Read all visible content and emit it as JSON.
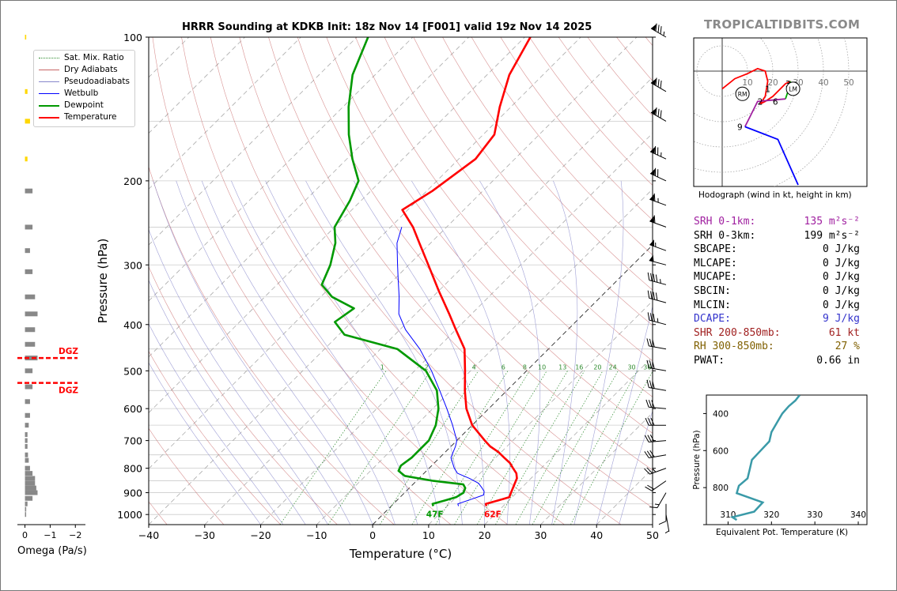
{
  "page": {
    "title": "HRRR Sounding at KDKB Init: 18z Nov 14 [F001] valid 19z Nov 14 2025",
    "logo": "TROPICALTIDBITS.COM"
  },
  "legend": [
    {
      "label": "Sat. Mix. Ratio",
      "color": "#2e8b2e",
      "style": "dotted"
    },
    {
      "label": "Dry Adiabats",
      "color": "#c86464",
      "style": "solid"
    },
    {
      "label": "Pseudoadiabats",
      "color": "#8888cc",
      "style": "solid"
    },
    {
      "label": "Wetbulb",
      "color": "#0000ff",
      "style": "solid"
    },
    {
      "label": "Dewpoint",
      "color": "#009900",
      "style": "solid"
    },
    {
      "label": "Temperature",
      "color": "#ff0000",
      "style": "solid"
    }
  ],
  "skewt": {
    "xlabel": "Temperature (°C)",
    "ylabel": "Pressure (hPa)",
    "xticks": [
      -40,
      -30,
      -20,
      -10,
      0,
      10,
      20,
      30,
      40,
      50
    ],
    "yticks": [
      100,
      200,
      300,
      400,
      500,
      600,
      700,
      800,
      900,
      1000
    ],
    "mixing_ratio_labels": [
      "1",
      "2",
      "4",
      "6",
      "8",
      "10",
      "13",
      "16",
      "20",
      "24",
      "30",
      "36"
    ],
    "surface_dewpoint_label": "47F",
    "surface_temperature_label": "62F"
  },
  "omega": {
    "xlabel": "Omega (Pa/s)",
    "xticks": [
      "0",
      "−1",
      "−2"
    ],
    "dgz_label": "DGZ"
  },
  "hodograph": {
    "caption": "Hodograph (wind in kt, height in km)",
    "ring_labels": [
      "10",
      "20",
      "30",
      "40",
      "50"
    ],
    "height_labels": [
      "1",
      "2",
      "3",
      "6",
      "9"
    ],
    "lm_label": "LM",
    "rm_label": "RM"
  },
  "params": [
    {
      "label": "SRH 0-1km:",
      "value": "135 m²s⁻²",
      "color": "#a020a0"
    },
    {
      "label": "SRH 0-3km:",
      "value": "199 m²s⁻²",
      "color": "#000000"
    },
    {
      "label": "SBCAPE:",
      "value": "0 J/kg",
      "color": "#000000"
    },
    {
      "label": "MLCAPE:",
      "value": "0 J/kg",
      "color": "#000000"
    },
    {
      "label": "MUCAPE:",
      "value": "0 J/kg",
      "color": "#000000"
    },
    {
      "label": "SBCIN:",
      "value": "0 J/kg",
      "color": "#000000"
    },
    {
      "label": "MLCIN:",
      "value": "0 J/kg",
      "color": "#000000"
    },
    {
      "label": "DCAPE:",
      "value": "9 J/kg",
      "color": "#3333cc"
    },
    {
      "label": "SHR 200-850mb:",
      "value": "61 kt",
      "color": "#a02020"
    },
    {
      "label": "RH 300-850mb:",
      "value": "27 %",
      "color": "#806000"
    },
    {
      "label": "PWAT:",
      "value": "0.66 in",
      "color": "#000000"
    }
  ],
  "theta_e": {
    "xlabel": "Equivalent Pot. Temperature (K)",
    "ylabel": "Pressure (hPa)",
    "xticks": [
      "310",
      "320",
      "330",
      "340"
    ],
    "yticks": [
      "400",
      "600",
      "800"
    ]
  },
  "chart_data": [
    {
      "type": "line",
      "title": "HRRR Sounding at KDKB Init: 18z Nov 14 [F001] valid 19z Nov 14 2025",
      "xlabel": "Temperature (°C)",
      "ylabel": "Pressure (hPa)",
      "xlim": [
        -40,
        50
      ],
      "ylim": [
        1050,
        100
      ],
      "y_scale": "log",
      "skew": "skew-T",
      "series": [
        {
          "name": "Temperature",
          "color": "#ff0000",
          "points": [
            [
              17.0,
              960
            ],
            [
              16.5,
              950
            ],
            [
              18.0,
              935
            ],
            [
              19.5,
              920
            ],
            [
              19.0,
              900
            ],
            [
              18.5,
              880
            ],
            [
              18.0,
              860
            ],
            [
              17.5,
              840
            ],
            [
              16.5,
              820
            ],
            [
              15.0,
              800
            ],
            [
              13.5,
              780
            ],
            [
              11.5,
              760
            ],
            [
              9.5,
              740
            ],
            [
              7.0,
              720
            ],
            [
              5.0,
              700
            ],
            [
              0.0,
              650
            ],
            [
              -4.0,
              600
            ],
            [
              -7.5,
              550
            ],
            [
              -11.0,
              500
            ],
            [
              -15.0,
              450
            ],
            [
              -20.0,
              410
            ],
            [
              -24.0,
              380
            ],
            [
              -30.0,
              340
            ],
            [
              -36.5,
              300
            ],
            [
              -42.0,
              270
            ],
            [
              -46.0,
              250
            ],
            [
              -51.0,
              230
            ],
            [
              -49.0,
              210
            ],
            [
              -47.0,
              180
            ],
            [
              -48.0,
              160
            ],
            [
              -52.0,
              140
            ],
            [
              -56.0,
              120
            ],
            [
              -59.0,
              100
            ]
          ]
        },
        {
          "name": "Dewpoint",
          "color": "#009900",
          "points": [
            [
              7.5,
              960
            ],
            [
              7.0,
              950
            ],
            [
              8.5,
              935
            ],
            [
              10.0,
              920
            ],
            [
              10.5,
              900
            ],
            [
              10.0,
              880
            ],
            [
              9.0,
              865
            ],
            [
              3.0,
              850
            ],
            [
              -3.0,
              830
            ],
            [
              -5.0,
              810
            ],
            [
              -5.5,
              790
            ],
            [
              -5.0,
              760
            ],
            [
              -5.0,
              730
            ],
            [
              -5.0,
              700
            ],
            [
              -6.5,
              650
            ],
            [
              -9.0,
              600
            ],
            [
              -12.5,
              550
            ],
            [
              -18.0,
              500
            ],
            [
              -27.0,
              450
            ],
            [
              -39.0,
              420
            ],
            [
              -43.0,
              395
            ],
            [
              -42.0,
              370
            ],
            [
              -48.0,
              350
            ],
            [
              -52.0,
              330
            ],
            [
              -54.0,
              300
            ],
            [
              -57.0,
              270
            ],
            [
              -60.0,
              250
            ],
            [
              -62.0,
              220
            ],
            [
              -64.0,
              200
            ],
            [
              -69.0,
              180
            ],
            [
              -74.0,
              160
            ],
            [
              -79.0,
              140
            ],
            [
              -84.0,
              120
            ],
            [
              -88.0,
              100
            ]
          ]
        },
        {
          "name": "Wetbulb",
          "color": "#0000ff",
          "points": [
            [
              12.0,
              960
            ],
            [
              11.5,
              950
            ],
            [
              13.0,
              930
            ],
            [
              14.5,
              910
            ],
            [
              14.0,
              895
            ],
            [
              13.0,
              880
            ],
            [
              11.5,
              860
            ],
            [
              9.0,
              840
            ],
            [
              6.0,
              820
            ],
            [
              4.5,
              800
            ],
            [
              2.0,
              760
            ],
            [
              0.8,
              720
            ],
            [
              0.0,
              700
            ],
            [
              -3.5,
              650
            ],
            [
              -7.5,
              600
            ],
            [
              -12.0,
              550
            ],
            [
              -17.0,
              500
            ],
            [
              -23.0,
              450
            ],
            [
              -29.0,
              410
            ],
            [
              -33.0,
              380
            ],
            [
              -36.0,
              350
            ],
            [
              -39.5,
              320
            ],
            [
              -42.0,
              300
            ],
            [
              -46.0,
              270
            ],
            [
              -48.0,
              250
            ]
          ]
        }
      ],
      "surface_labels": {
        "dewpoint": "47F",
        "temperature": "62F"
      }
    },
    {
      "type": "line",
      "title": "",
      "xlabel": "Equivalent Pot. Temperature (K)",
      "ylabel": "Pressure (hPa)",
      "xlim": [
        305,
        342
      ],
      "ylim": [
        1000,
        300
      ],
      "series": [
        {
          "name": "",
          "color": "#3a9aa8",
          "points": [
            [
              312,
              975
            ],
            [
              311,
              960
            ],
            [
              316,
              930
            ],
            [
              318,
              880
            ],
            [
              312,
              830
            ],
            [
              312.5,
              790
            ],
            [
              314.5,
              750
            ],
            [
              315,
              700
            ],
            [
              315.5,
              650
            ],
            [
              317.5,
              600
            ],
            [
              319.5,
              550
            ],
            [
              320,
              500
            ],
            [
              321.5,
              440
            ],
            [
              322.5,
              400
            ],
            [
              324,
              360
            ],
            [
              325.5,
              330
            ],
            [
              326.5,
              300
            ]
          ]
        }
      ]
    },
    {
      "type": "line",
      "title": "Hodograph (wind in kt, height in km)",
      "xlabel": "",
      "ylabel": "",
      "ring_labels_kt": [
        10,
        20,
        30,
        40,
        50
      ],
      "series": [
        {
          "name": "0-1 km",
          "color": "#ff0000",
          "points": [
            [
              0,
              -7
            ],
            [
              5,
              -3
            ],
            [
              10,
              -1
            ],
            [
              14,
              1
            ],
            [
              17,
              0
            ],
            [
              18,
              -4
            ],
            [
              17,
              -10
            ],
            [
              15,
              -13
            ]
          ]
        },
        {
          "name": "1-3 km",
          "color": "#ff0000",
          "points": [
            [
              15,
              -13
            ],
            [
              17,
              -12
            ],
            [
              20,
              -10
            ],
            [
              22,
              -8
            ],
            [
              25,
              -5
            ],
            [
              27,
              -4
            ]
          ]
        },
        {
          "name": "3-6 km",
          "color": "#00aa00",
          "points": [
            [
              27,
              -4
            ],
            [
              26,
              -8
            ],
            [
              25,
              -11
            ]
          ]
        },
        {
          "name": "6-9 km",
          "color": "#a020a0",
          "points": [
            [
              25,
              -11
            ],
            [
              14,
              -12
            ],
            [
              11,
              -18
            ],
            [
              9,
              -22
            ]
          ]
        },
        {
          "name": "9+ km",
          "color": "#0000ff",
          "points": [
            [
              9,
              -22
            ],
            [
              22,
              -27
            ],
            [
              30,
              -45
            ]
          ]
        }
      ],
      "height_markers": [
        {
          "label": "1",
          "u": 18,
          "v": -7
        },
        {
          "label": "2",
          "u": 15,
          "v": -12
        },
        {
          "label": "3",
          "u": 26,
          "v": -5
        },
        {
          "label": "6",
          "u": 21,
          "v": -12
        },
        {
          "label": "9",
          "u": 7,
          "v": -22
        }
      ],
      "LM": [
        28,
        -7
      ],
      "RM": [
        8,
        -9
      ]
    },
    {
      "type": "bar",
      "title": "",
      "xlabel": "Omega (Pa/s)",
      "ylabel": "",
      "xlim": [
        0.3,
        -2.4
      ],
      "orientation": "horizontal",
      "pressure": [
        100,
        130,
        150,
        180,
        210,
        250,
        280,
        310,
        350,
        380,
        410,
        440,
        470,
        500,
        540,
        580,
        620,
        650,
        680,
        700,
        720,
        750,
        770,
        800,
        820,
        840,
        860,
        880,
        900,
        925,
        950,
        975,
        1000
      ],
      "omega": [
        -0.05,
        -0.1,
        -0.2,
        -0.1,
        -0.3,
        -0.3,
        -0.2,
        -0.3,
        -0.4,
        -0.5,
        -0.4,
        -0.4,
        -0.5,
        -0.3,
        -0.3,
        -0.2,
        -0.2,
        -0.15,
        -0.1,
        -0.1,
        -0.1,
        -0.12,
        -0.15,
        -0.2,
        -0.3,
        -0.4,
        -0.4,
        -0.45,
        -0.5,
        -0.3,
        -0.1,
        -0.05,
        -0.02
      ],
      "dgz_pressures": [
        470,
        530
      ]
    }
  ],
  "wind_barbs": [
    {
      "p": 100,
      "spd_kt": 85,
      "dir_deg": 300
    },
    {
      "p": 130,
      "spd_kt": 80,
      "dir_deg": 300
    },
    {
      "p": 150,
      "spd_kt": 80,
      "dir_deg": 300
    },
    {
      "p": 180,
      "spd_kt": 75,
      "dir_deg": 295
    },
    {
      "p": 200,
      "spd_kt": 70,
      "dir_deg": 295
    },
    {
      "p": 225,
      "spd_kt": 65,
      "dir_deg": 290
    },
    {
      "p": 250,
      "spd_kt": 60,
      "dir_deg": 290
    },
    {
      "p": 280,
      "spd_kt": 55,
      "dir_deg": 290
    },
    {
      "p": 300,
      "spd_kt": 50,
      "dir_deg": 285
    },
    {
      "p": 330,
      "spd_kt": 45,
      "dir_deg": 285
    },
    {
      "p": 360,
      "spd_kt": 40,
      "dir_deg": 285
    },
    {
      "p": 400,
      "spd_kt": 35,
      "dir_deg": 285
    },
    {
      "p": 450,
      "spd_kt": 30,
      "dir_deg": 280
    },
    {
      "p": 500,
      "spd_kt": 30,
      "dir_deg": 280
    },
    {
      "p": 550,
      "spd_kt": 30,
      "dir_deg": 280
    },
    {
      "p": 600,
      "spd_kt": 30,
      "dir_deg": 275
    },
    {
      "p": 650,
      "spd_kt": 30,
      "dir_deg": 270
    },
    {
      "p": 700,
      "spd_kt": 30,
      "dir_deg": 265
    },
    {
      "p": 750,
      "spd_kt": 30,
      "dir_deg": 260
    },
    {
      "p": 800,
      "spd_kt": 25,
      "dir_deg": 250
    },
    {
      "p": 850,
      "spd_kt": 20,
      "dir_deg": 235
    },
    {
      "p": 900,
      "spd_kt": 15,
      "dir_deg": 210
    },
    {
      "p": 950,
      "spd_kt": 10,
      "dir_deg": 180
    },
    {
      "p": 1000,
      "spd_kt": 5,
      "dir_deg": 170
    }
  ]
}
